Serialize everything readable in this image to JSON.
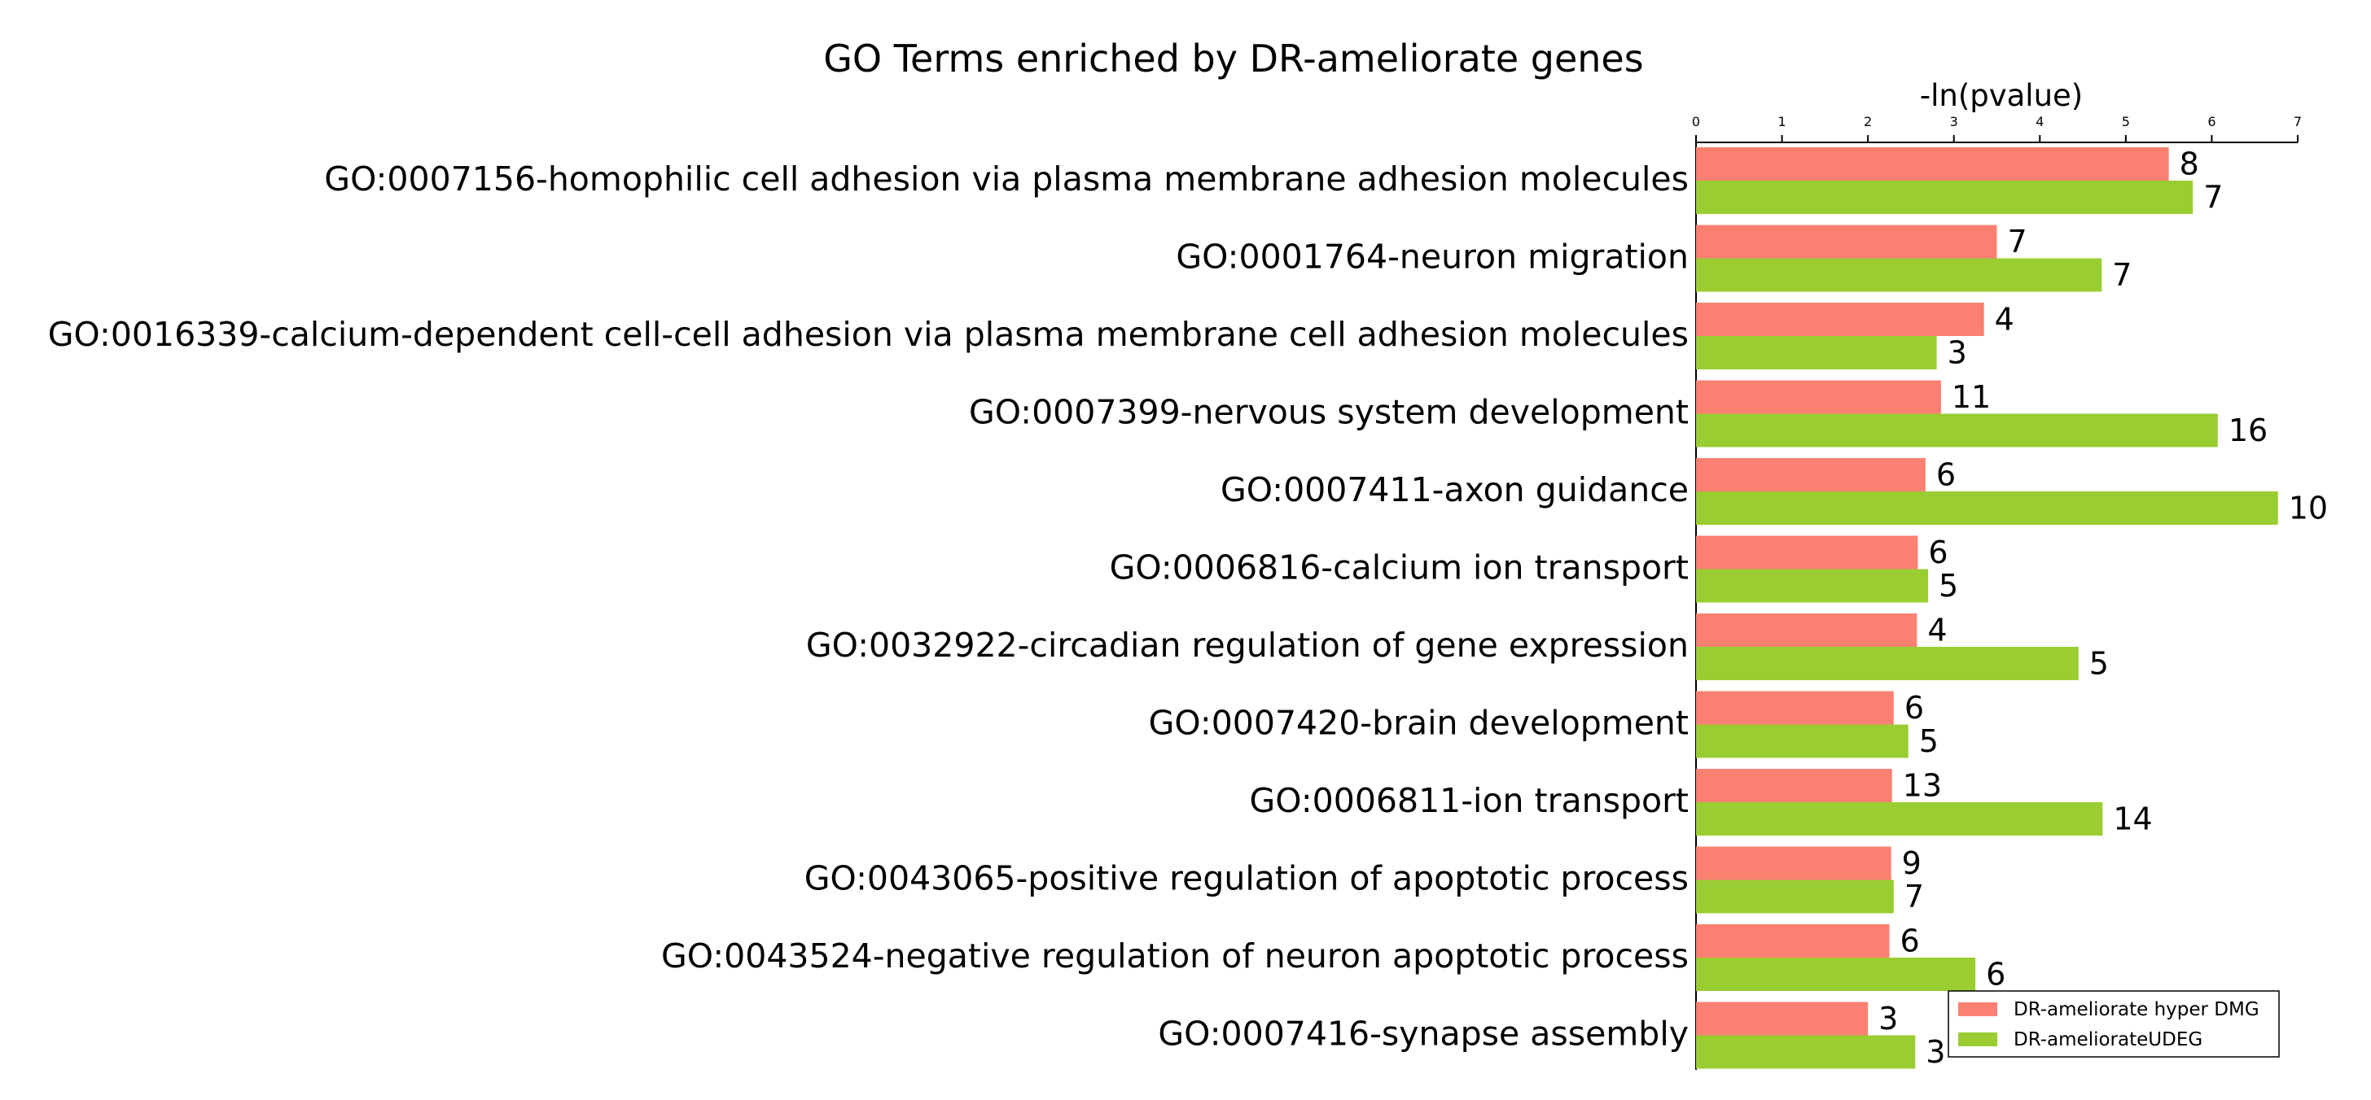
{
  "chart_data": {
    "type": "bar",
    "orientation": "horizontal",
    "title": "GO Terms enriched by DR-ameliorate genes",
    "xlabel": "-ln(pvalue)",
    "ylabel": "",
    "xlim": [
      0,
      7
    ],
    "xticks": [
      "0",
      "1",
      "2",
      "3",
      "4",
      "5",
      "6",
      "7"
    ],
    "xaxis_position": "top",
    "grid": false,
    "legend_position": "bottom-right",
    "categories": [
      "GO:0007156-homophilic cell adhesion via plasma membrane adhesion molecules",
      "GO:0001764-neuron migration",
      "GO:0016339-calcium-dependent cell-cell adhesion via plasma membrane cell adhesion molecules",
      "GO:0007399-nervous system development",
      "GO:0007411-axon guidance",
      "GO:0006816-calcium ion transport",
      "GO:0032922-circadian regulation of gene expression",
      "GO:0007420-brain development",
      "GO:0006811-ion transport",
      "GO:0043065-positive regulation of apoptotic process",
      "GO:0043524-negative regulation of neuron apoptotic process",
      "GO:0007416-synapse assembly"
    ],
    "series": [
      {
        "name": "DR-ameliorate hyper DMG",
        "color": "#fa8072",
        "values": [
          5.5,
          3.5,
          3.35,
          2.85,
          2.67,
          2.58,
          2.57,
          2.3,
          2.28,
          2.27,
          2.25,
          2.0
        ],
        "labels": [
          "8",
          "7",
          "4",
          "11",
          "6",
          "6",
          "4",
          "6",
          "13",
          "9",
          "6",
          "3"
        ]
      },
      {
        "name": "DR-ameliorateUDEG",
        "color": "#9acd32",
        "values": [
          5.78,
          4.72,
          2.8,
          6.07,
          6.77,
          2.7,
          4.45,
          2.47,
          4.73,
          2.3,
          3.25,
          2.55
        ],
        "labels": [
          "7",
          "7",
          "3",
          "16",
          "10",
          "5",
          "5",
          "5",
          "14",
          "7",
          "6",
          "3"
        ]
      }
    ]
  }
}
